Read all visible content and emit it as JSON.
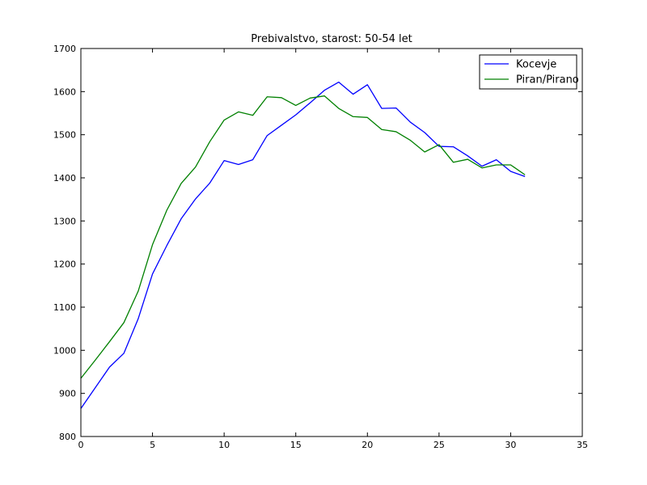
{
  "chart_data": {
    "type": "line",
    "title": "Prebivalstvo, starost: 50-54 let",
    "xlabel": "",
    "ylabel": "",
    "xlim": [
      0,
      35
    ],
    "ylim": [
      800,
      1700
    ],
    "xticks": [
      0,
      5,
      10,
      15,
      20,
      25,
      30,
      35
    ],
    "yticks": [
      800,
      900,
      1000,
      1100,
      1200,
      1300,
      1400,
      1500,
      1600,
      1700
    ],
    "grid": false,
    "legend_position": "top-right",
    "x": [
      0,
      1,
      2,
      3,
      4,
      5,
      6,
      7,
      8,
      9,
      10,
      11,
      12,
      13,
      14,
      15,
      16,
      17,
      18,
      19,
      20,
      21,
      22,
      23,
      24,
      25,
      26,
      27,
      28,
      29,
      30,
      31
    ],
    "series": [
      {
        "name": "Kocevje",
        "color": "#0000ff",
        "values": [
          865,
          913,
          961,
          993,
          1073,
          1177,
          1243,
          1305,
          1351,
          1388,
          1440,
          1431,
          1442,
          1498,
          1522,
          1546,
          1574,
          1603,
          1622,
          1594,
          1616,
          1561,
          1562,
          1529,
          1505,
          1473,
          1472,
          1451,
          1427,
          1442,
          1415,
          1403
        ]
      },
      {
        "name": "Piran/Pirano",
        "color": "#008000",
        "values": [
          935,
          977,
          1020,
          1064,
          1137,
          1245,
          1325,
          1387,
          1425,
          1484,
          1534,
          1553,
          1545,
          1588,
          1586,
          1568,
          1585,
          1590,
          1561,
          1542,
          1540,
          1512,
          1507,
          1487,
          1460,
          1477,
          1436,
          1443,
          1423,
          1430,
          1430,
          1407
        ]
      }
    ]
  }
}
